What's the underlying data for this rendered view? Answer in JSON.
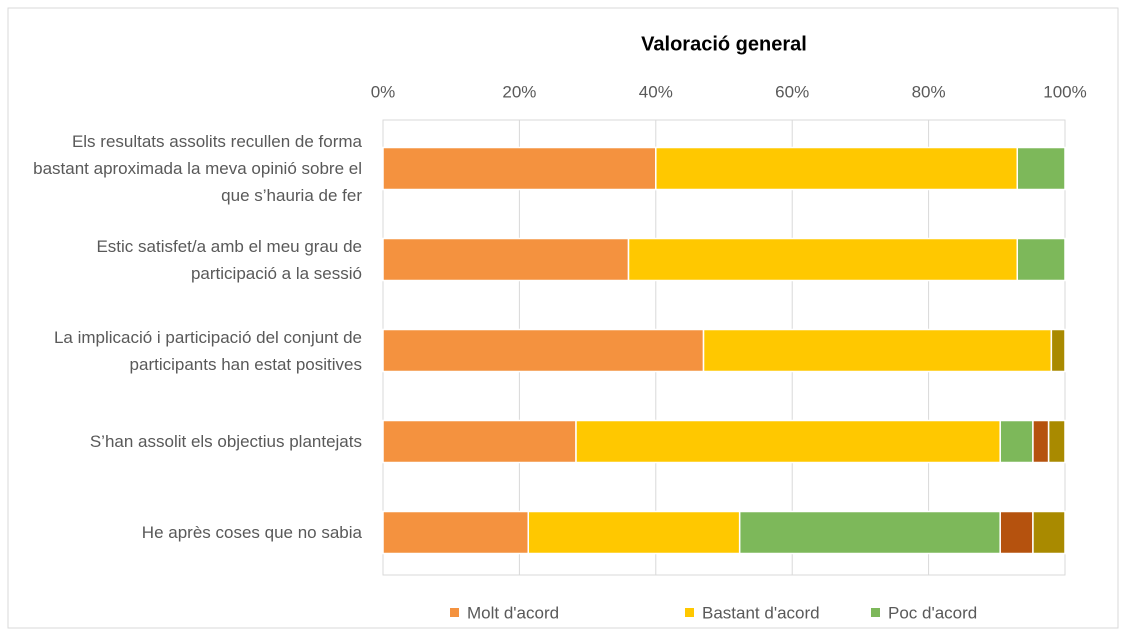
{
  "chart_data": {
    "type": "stacked-bar-horizontal",
    "title": "Valoració general",
    "categories": [
      "Els resultats assolits recullen de forma bastant aproximada la meva opinió sobre el que s’hauria de fer",
      "Estic satisfet/a amb el meu grau de participació a la sessió",
      "La implicació i participació del conjunt de participants han estat positives",
      "S’han assolit els objectius plantejats",
      "He après coses que no sabia"
    ],
    "series": [
      {
        "name": "Molt d'acord",
        "color": "#f4923f",
        "values": [
          40,
          36,
          47,
          28.3,
          21.3
        ]
      },
      {
        "name": "Bastant d'acord",
        "color": "#ffc800",
        "values": [
          53,
          57,
          51,
          62.2,
          31
        ]
      },
      {
        "name": "Poc d'acord",
        "color": "#7db85a",
        "values": [
          7,
          7,
          0,
          4.8,
          38.2
        ]
      },
      {
        "color": "#b5520e",
        "values": [
          0,
          0,
          0,
          2.3,
          4.8
        ]
      },
      {
        "color": "#a98a00",
        "values": [
          0,
          0,
          2,
          2.4,
          4.7
        ]
      }
    ],
    "xlim": [
      0,
      100
    ],
    "xticks": [
      {
        "value": 0,
        "label": "0%"
      },
      {
        "value": 20,
        "label": "20%"
      },
      {
        "value": 40,
        "label": "40%"
      },
      {
        "value": 60,
        "label": "60%"
      },
      {
        "value": 80,
        "label": "80%"
      },
      {
        "value": 100,
        "label": "100%"
      }
    ],
    "grid": true,
    "legend": "bottom"
  }
}
